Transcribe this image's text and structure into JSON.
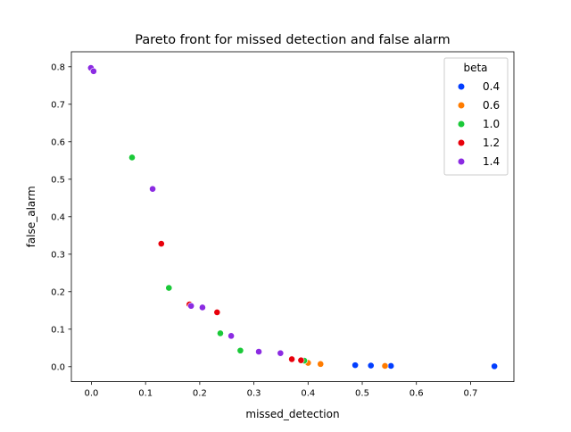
{
  "chart_data": {
    "type": "scatter",
    "title": "Pareto front for missed detection and false alarm",
    "xlabel": "missed_detection",
    "ylabel": "false_alarm",
    "xlim": [
      -0.037,
      0.78
    ],
    "ylim": [
      -0.04,
      0.84
    ],
    "xticks": [
      0.0,
      0.1,
      0.2,
      0.3,
      0.4,
      0.5,
      0.6,
      0.7
    ],
    "xtick_labels": [
      "0.0",
      "0.1",
      "0.2",
      "0.3",
      "0.4",
      "0.5",
      "0.6",
      "0.7"
    ],
    "yticks": [
      0.0,
      0.1,
      0.2,
      0.3,
      0.4,
      0.5,
      0.6,
      0.7,
      0.8
    ],
    "ytick_labels": [
      "0.0",
      "0.1",
      "0.2",
      "0.3",
      "0.4",
      "0.5",
      "0.6",
      "0.7",
      "0.8"
    ],
    "grid": false,
    "legend": {
      "title": "beta",
      "placement": "top-right"
    },
    "series": [
      {
        "name": "0.4",
        "color": "#023eff",
        "x": [
          0.487,
          0.516,
          0.553,
          0.744
        ],
        "y": [
          0.004,
          0.003,
          0.002,
          0.001
        ]
      },
      {
        "name": "0.6",
        "color": "#ff7c00",
        "x": [
          0.4,
          0.423,
          0.542
        ],
        "y": [
          0.01,
          0.007,
          0.002
        ]
      },
      {
        "name": "1.0",
        "color": "#1ac938",
        "x": [
          0.075,
          0.143,
          0.238,
          0.275,
          0.393
        ],
        "y": [
          0.558,
          0.21,
          0.089,
          0.043,
          0.016
        ]
      },
      {
        "name": "1.2",
        "color": "#e8000b",
        "x": [
          0.129,
          0.181,
          0.232,
          0.37,
          0.387
        ],
        "y": [
          0.328,
          0.166,
          0.145,
          0.02,
          0.017
        ]
      },
      {
        "name": "1.4",
        "color": "#8b2be2",
        "x": [
          -0.001,
          0.004,
          0.113,
          0.184,
          0.205,
          0.258,
          0.309,
          0.349
        ],
        "y": [
          0.797,
          0.788,
          0.474,
          0.162,
          0.158,
          0.082,
          0.04,
          0.036
        ]
      }
    ]
  }
}
